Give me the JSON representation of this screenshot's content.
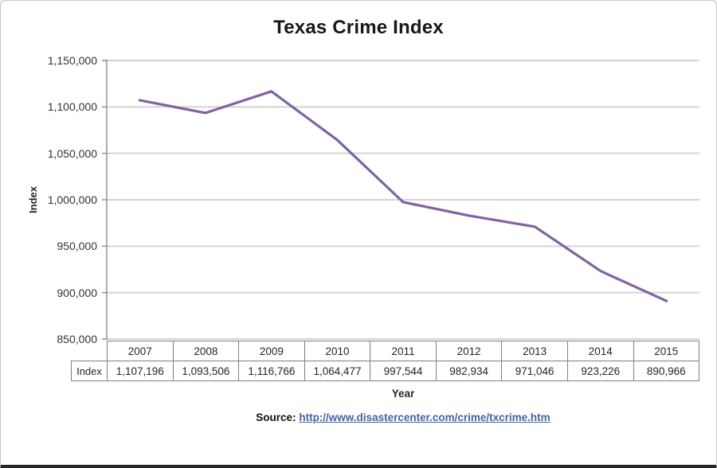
{
  "chart_data": {
    "type": "line",
    "title": "Texas Crime Index",
    "xlabel": "Year",
    "ylabel": "Index",
    "categories": [
      "2007",
      "2008",
      "2009",
      "2010",
      "2011",
      "2012",
      "2013",
      "2014",
      "2015"
    ],
    "series": [
      {
        "name": "Index",
        "values": [
          1107196,
          1093506,
          1116766,
          1064477,
          997544,
          982934,
          971046,
          923226,
          890966
        ],
        "values_formatted": [
          "1,107,196",
          "1,093,506",
          "1,116,766",
          "1,064,477",
          "997,544",
          "982,934",
          "971,046",
          "923,226",
          "890,966"
        ],
        "color": "#8064A2"
      }
    ],
    "ylim": [
      850000,
      1150000
    ],
    "ytick_step": 50000,
    "yticks_top_to_bottom": [
      "1,150,000",
      "1,100,000",
      "1,050,000",
      "1,000,000",
      "950,000",
      "900,000",
      "850,000"
    ],
    "grid": true,
    "legend_position": "none",
    "data_table_shown": true
  },
  "source": {
    "label": "Source:",
    "link_text": "http://www.disastercenter.com/crime/txcrime.htm",
    "link_color": "#44639e"
  },
  "colors": {
    "line": "#8064A2",
    "gridline": "#d4d4d4",
    "axis": "#8c8c8c",
    "table_border": "#7f7f7f",
    "text": "#262626",
    "frame_bottom": "#262626"
  }
}
